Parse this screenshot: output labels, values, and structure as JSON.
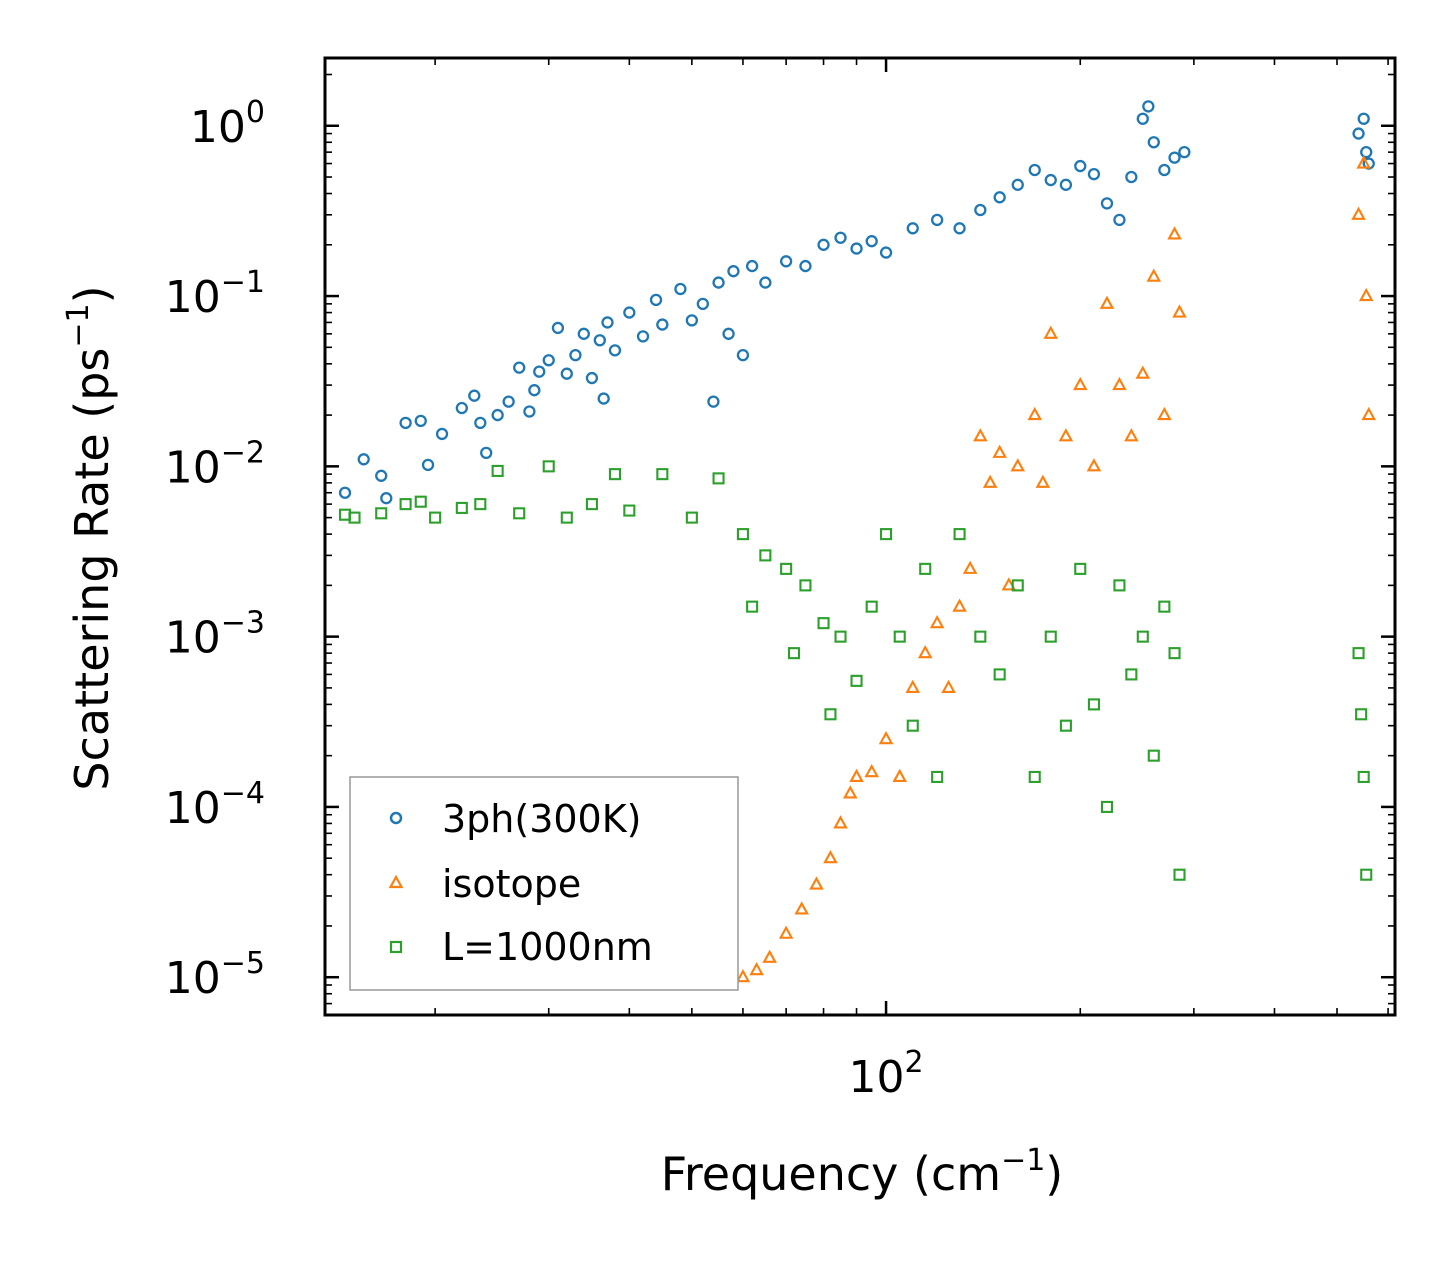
{
  "chart_data": {
    "type": "scatter",
    "title": "",
    "xlabel": "Frequency (cm",
    "xlabel_sup": "−1",
    "xlabel_tail": ")",
    "ylabel": "Scattering Rate (ps",
    "ylabel_sup": "−1",
    "ylabel_tail": ")",
    "xscale": "log",
    "yscale": "log",
    "xlim": [
      13.5,
      615
    ],
    "ylim": [
      6e-06,
      2.5
    ],
    "x_ticks": [
      {
        "base": "10",
        "exp": "2",
        "value": 100
      }
    ],
    "y_ticks": [
      {
        "base": "10",
        "exp": "0",
        "value": 1
      },
      {
        "base": "10",
        "exp": "−1",
        "value": 0.1
      },
      {
        "base": "10",
        "exp": "−2",
        "value": 0.01
      },
      {
        "base": "10",
        "exp": "−3",
        "value": 0.001
      },
      {
        "base": "10",
        "exp": "−4",
        "value": 0.0001
      },
      {
        "base": "10",
        "exp": "−5",
        "value": 1e-05
      }
    ],
    "legend_position": "lower-left",
    "series": [
      {
        "name": "3ph(300K)",
        "color": "#1f77b4",
        "marker": "circle",
        "points": [
          [
            14.5,
            0.007
          ],
          [
            15.5,
            0.011
          ],
          [
            16.5,
            0.0088
          ],
          [
            16.8,
            0.0065
          ],
          [
            18,
            0.018
          ],
          [
            19,
            0.0185
          ],
          [
            19.5,
            0.0102
          ],
          [
            20.5,
            0.0155
          ],
          [
            22,
            0.022
          ],
          [
            23,
            0.026
          ],
          [
            23.5,
            0.018
          ],
          [
            24,
            0.012
          ],
          [
            25,
            0.02
          ],
          [
            26,
            0.024
          ],
          [
            27,
            0.038
          ],
          [
            28,
            0.021
          ],
          [
            28.5,
            0.028
          ],
          [
            29,
            0.036
          ],
          [
            30,
            0.042
          ],
          [
            31,
            0.065
          ],
          [
            32,
            0.035
          ],
          [
            33,
            0.045
          ],
          [
            34,
            0.06
          ],
          [
            35,
            0.033
          ],
          [
            36,
            0.055
          ],
          [
            36.5,
            0.025
          ],
          [
            37,
            0.07
          ],
          [
            38,
            0.048
          ],
          [
            40,
            0.08
          ],
          [
            42,
            0.058
          ],
          [
            44,
            0.095
          ],
          [
            45,
            0.068
          ],
          [
            48,
            0.11
          ],
          [
            50,
            0.072
          ],
          [
            52,
            0.09
          ],
          [
            54,
            0.024
          ],
          [
            55,
            0.12
          ],
          [
            57,
            0.06
          ],
          [
            58,
            0.14
          ],
          [
            60,
            0.045
          ],
          [
            62,
            0.15
          ],
          [
            65,
            0.12
          ],
          [
            70,
            0.16
          ],
          [
            75,
            0.15
          ],
          [
            80,
            0.2
          ],
          [
            85,
            0.22
          ],
          [
            90,
            0.19
          ],
          [
            95,
            0.21
          ],
          [
            100,
            0.18
          ],
          [
            110,
            0.25
          ],
          [
            120,
            0.28
          ],
          [
            130,
            0.25
          ],
          [
            140,
            0.32
          ],
          [
            150,
            0.38
          ],
          [
            160,
            0.45
          ],
          [
            170,
            0.55
          ],
          [
            180,
            0.48
          ],
          [
            190,
            0.45
          ],
          [
            200,
            0.58
          ],
          [
            210,
            0.52
          ],
          [
            220,
            0.35
          ],
          [
            230,
            0.28
          ],
          [
            240,
            0.5
          ],
          [
            250,
            1.1
          ],
          [
            255,
            1.3
          ],
          [
            260,
            0.8
          ],
          [
            270,
            0.55
          ],
          [
            280,
            0.65
          ],
          [
            290,
            0.7
          ],
          [
            540,
            0.9
          ],
          [
            550,
            1.1
          ],
          [
            555,
            0.7
          ],
          [
            560,
            0.6
          ]
        ]
      },
      {
        "name": "isotope",
        "color": "#ff7f0e",
        "marker": "triangle",
        "points": [
          [
            60,
            1e-05
          ],
          [
            63,
            1.1e-05
          ],
          [
            66,
            1.3e-05
          ],
          [
            70,
            1.8e-05
          ],
          [
            74,
            2.5e-05
          ],
          [
            78,
            3.5e-05
          ],
          [
            82,
            5e-05
          ],
          [
            85,
            8e-05
          ],
          [
            88,
            0.00012
          ],
          [
            90,
            0.00015
          ],
          [
            95,
            0.00016
          ],
          [
            100,
            0.00025
          ],
          [
            105,
            0.00015
          ],
          [
            110,
            0.0005
          ],
          [
            115,
            0.0008
          ],
          [
            120,
            0.0012
          ],
          [
            125,
            0.0005
          ],
          [
            130,
            0.0015
          ],
          [
            135,
            0.0025
          ],
          [
            140,
            0.015
          ],
          [
            145,
            0.008
          ],
          [
            150,
            0.012
          ],
          [
            155,
            0.002
          ],
          [
            160,
            0.01
          ],
          [
            170,
            0.02
          ],
          [
            175,
            0.008
          ],
          [
            180,
            0.06
          ],
          [
            190,
            0.015
          ],
          [
            200,
            0.03
          ],
          [
            210,
            0.01
          ],
          [
            220,
            0.09
          ],
          [
            230,
            0.03
          ],
          [
            240,
            0.015
          ],
          [
            250,
            0.035
          ],
          [
            260,
            0.13
          ],
          [
            270,
            0.02
          ],
          [
            280,
            0.23
          ],
          [
            285,
            0.08
          ],
          [
            540,
            0.3
          ],
          [
            550,
            0.6
          ],
          [
            555,
            0.1
          ],
          [
            560,
            0.02
          ]
        ]
      },
      {
        "name": "L=1000nm",
        "color": "#2ca02c",
        "marker": "square",
        "points": [
          [
            14.5,
            0.0052
          ],
          [
            15,
            0.005
          ],
          [
            16.5,
            0.0053
          ],
          [
            18,
            0.006
          ],
          [
            19,
            0.0062
          ],
          [
            20,
            0.005
          ],
          [
            22,
            0.0057
          ],
          [
            23.5,
            0.006
          ],
          [
            25,
            0.0094
          ],
          [
            27,
            0.0053
          ],
          [
            30,
            0.01
          ],
          [
            32,
            0.005
          ],
          [
            35,
            0.006
          ],
          [
            38,
            0.009
          ],
          [
            40,
            0.0055
          ],
          [
            45,
            0.009
          ],
          [
            50,
            0.005
          ],
          [
            55,
            0.0085
          ],
          [
            60,
            0.004
          ],
          [
            62,
            0.0015
          ],
          [
            65,
            0.003
          ],
          [
            70,
            0.0025
          ],
          [
            72,
            0.0008
          ],
          [
            75,
            0.002
          ],
          [
            80,
            0.0012
          ],
          [
            82,
            0.00035
          ],
          [
            85,
            0.001
          ],
          [
            90,
            0.00055
          ],
          [
            95,
            0.0015
          ],
          [
            100,
            0.004
          ],
          [
            105,
            0.001
          ],
          [
            110,
            0.0003
          ],
          [
            115,
            0.0025
          ],
          [
            120,
            0.00015
          ],
          [
            130,
            0.004
          ],
          [
            140,
            0.001
          ],
          [
            150,
            0.0006
          ],
          [
            160,
            0.002
          ],
          [
            170,
            0.00015
          ],
          [
            180,
            0.001
          ],
          [
            190,
            0.0003
          ],
          [
            200,
            0.0025
          ],
          [
            210,
            0.0004
          ],
          [
            220,
            0.0001
          ],
          [
            230,
            0.002
          ],
          [
            240,
            0.0006
          ],
          [
            250,
            0.001
          ],
          [
            260,
            0.0002
          ],
          [
            270,
            0.0015
          ],
          [
            280,
            0.0008
          ],
          [
            285,
            4e-05
          ],
          [
            540,
            0.0008
          ],
          [
            545,
            0.00035
          ],
          [
            550,
            0.00015
          ],
          [
            555,
            4e-05
          ]
        ]
      }
    ]
  }
}
